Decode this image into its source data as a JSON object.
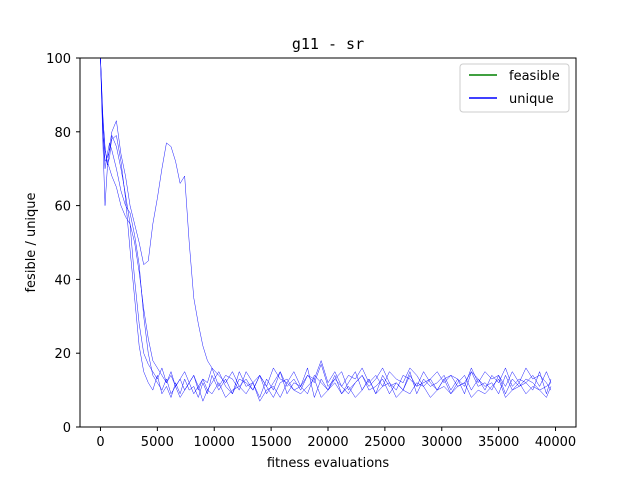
{
  "chart_data": {
    "type": "line",
    "title": "g11  -  sr",
    "xlabel": "fitness evaluations",
    "ylabel": "fesible / unique",
    "xlim": [
      -1800,
      41800
    ],
    "ylim": [
      0,
      100
    ],
    "xticks": [
      0,
      5000,
      10000,
      15000,
      20000,
      25000,
      30000,
      35000,
      40000
    ],
    "yticks": [
      0,
      20,
      40,
      60,
      80,
      100
    ],
    "legend": {
      "position": "top-right",
      "entries": [
        {
          "label": "feasible",
          "color": "#008000"
        },
        {
          "label": "unique",
          "color": "#0000ff"
        }
      ]
    },
    "x": [
      0,
      200,
      400,
      600,
      800,
      1000,
      1400,
      1800,
      2200,
      2600,
      3000,
      3400,
      3800,
      4200,
      4600,
      5000,
      5400,
      5800,
      6200,
      6600,
      7000,
      7400,
      7800,
      8200,
      8600,
      9000,
      9400,
      9800,
      10400,
      11000,
      11600,
      12200,
      12800,
      13400,
      14000,
      14600,
      15200,
      15800,
      16400,
      17000,
      17600,
      18200,
      18800,
      19400,
      20000,
      20600,
      21200,
      21800,
      22400,
      23000,
      23600,
      24200,
      24800,
      25400,
      26000,
      26600,
      27200,
      27800,
      28400,
      29000,
      29600,
      30200,
      30800,
      31400,
      32000,
      32600,
      33200,
      33800,
      34400,
      35000,
      35600,
      36200,
      36800,
      37400,
      38000,
      38600,
      39200,
      39600
    ],
    "series": [
      {
        "color": "#0000ff",
        "values": [
          100,
          82,
          72,
          73,
          75,
          78,
          79,
          72,
          62,
          48,
          35,
          22,
          15,
          12,
          10,
          14,
          9,
          11,
          8,
          12,
          9,
          13,
          10,
          11,
          8,
          12,
          9,
          14,
          10,
          13,
          9,
          15,
          11,
          12,
          8,
          13,
          10,
          15,
          9,
          12,
          11,
          16,
          8,
          13,
          10,
          14,
          9,
          12,
          15,
          10,
          13,
          9,
          14,
          11,
          12,
          10,
          15,
          9,
          13,
          11,
          12,
          14,
          10,
          13,
          9,
          15,
          11,
          12,
          10,
          14,
          9,
          13,
          11,
          12,
          10,
          15,
          9,
          13
        ]
      },
      {
        "color": "#0000ff",
        "values": [
          100,
          78,
          60,
          70,
          76,
          80,
          83,
          74,
          68,
          60,
          55,
          50,
          44,
          45,
          55,
          62,
          70,
          77,
          76,
          72,
          66,
          68,
          50,
          35,
          28,
          22,
          18,
          16,
          14,
          12,
          15,
          11,
          13,
          10,
          14,
          9,
          12,
          15,
          11,
          13,
          10,
          14,
          12,
          17,
          11,
          13,
          15,
          10,
          12,
          14,
          11,
          13,
          16,
          12,
          10,
          14,
          13,
          11,
          15,
          12,
          10,
          13,
          14,
          11,
          12,
          15,
          13,
          10,
          14,
          12,
          16,
          11,
          13,
          12,
          14,
          11,
          15,
          12
        ]
      },
      {
        "color": "#0000ff",
        "values": [
          100,
          85,
          75,
          72,
          70,
          68,
          65,
          60,
          57,
          55,
          50,
          42,
          32,
          24,
          18,
          16,
          14,
          12,
          15,
          11,
          13,
          10,
          12,
          14,
          11,
          13,
          10,
          12,
          15,
          11,
          9,
          13,
          12,
          10,
          14,
          11,
          8,
          12,
          13,
          10,
          11,
          9,
          14,
          12,
          10,
          13,
          11,
          9,
          12,
          14,
          10,
          11,
          13,
          9,
          12,
          10,
          14,
          11,
          12,
          13,
          10,
          11,
          9,
          12,
          14,
          10,
          13,
          11,
          12,
          9,
          14,
          10,
          11,
          13,
          12,
          10,
          11,
          12
        ]
      },
      {
        "color": "#0000ff",
        "values": [
          100,
          80,
          70,
          74,
          77,
          75,
          70,
          64,
          60,
          58,
          52,
          44,
          30,
          20,
          14,
          12,
          10,
          13,
          9,
          11,
          8,
          10,
          12,
          9,
          11,
          7,
          10,
          9,
          12,
          8,
          10,
          11,
          9,
          12,
          7,
          10,
          11,
          8,
          12,
          10,
          9,
          11,
          13,
          8,
          10,
          12,
          9,
          11,
          8,
          10,
          13,
          9,
          11,
          12,
          8,
          10,
          9,
          12,
          11,
          8,
          10,
          13,
          9,
          11,
          12,
          8,
          10,
          9,
          11,
          13,
          8,
          10,
          12,
          9,
          11,
          10,
          8,
          11
        ]
      },
      {
        "color": "#0000ff",
        "values": [
          100,
          84,
          76,
          71,
          73,
          79,
          76,
          70,
          63,
          55,
          40,
          28,
          20,
          17,
          15,
          13,
          16,
          12,
          14,
          11,
          13,
          15,
          12,
          14,
          10,
          13,
          12,
          16,
          11,
          14,
          13,
          10,
          15,
          12,
          14,
          11,
          16,
          13,
          12,
          15,
          11,
          14,
          13,
          18,
          12,
          15,
          11,
          14,
          13,
          16,
          12,
          14,
          11,
          15,
          13,
          12,
          16,
          14,
          11,
          13,
          15,
          12,
          14,
          13,
          11,
          16,
          12,
          15,
          13,
          14,
          11,
          15,
          12,
          16,
          13,
          14,
          12,
          10
        ]
      }
    ]
  }
}
